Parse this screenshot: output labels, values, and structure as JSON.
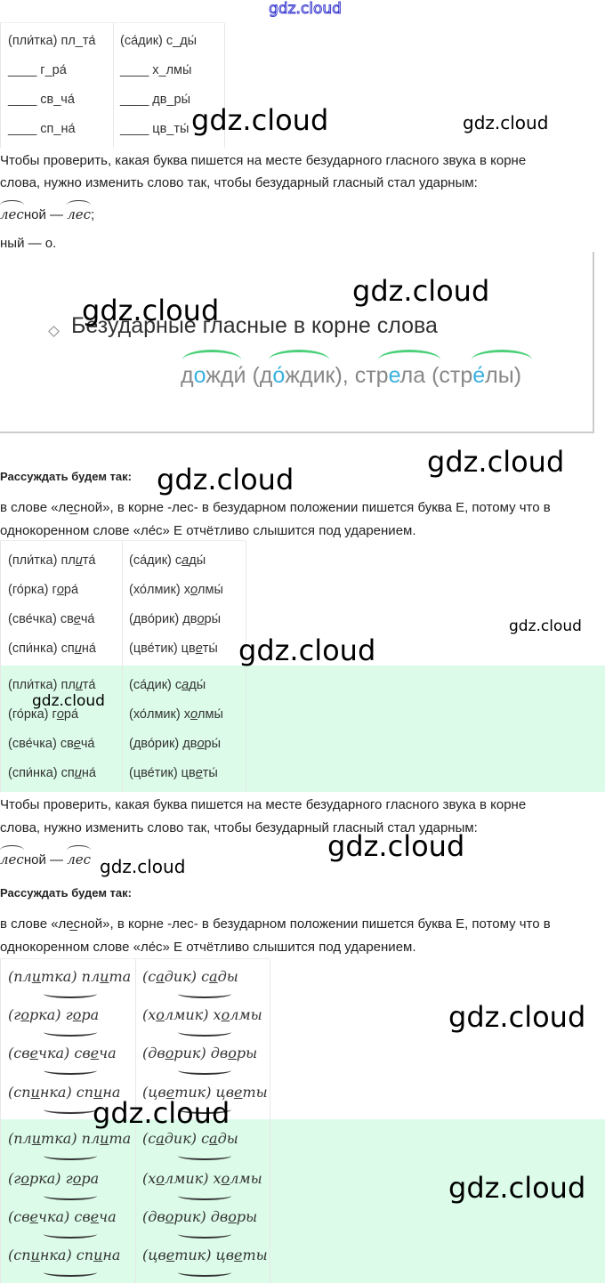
{
  "watermark": "gdz.cloud",
  "task_table": {
    "rows": [
      [
        "(пли́тка) пл_та́",
        "(са́дик) с_ды́"
      ],
      [
        "____ г_ра́",
        "____ х_лмы́"
      ],
      [
        "____ св_ча́",
        "____ дв_ры́"
      ],
      [
        "____ сп_на́",
        "____ цв_ты́"
      ]
    ]
  },
  "rule_text": {
    "line1": "Чтобы проверить, какая буква пишется на месте безударного гласного звука в корне",
    "line2": "слова, нужно изменить слово так, чтобы безударный гласный стал ударным:",
    "example_root": "лес",
    "example_suffix": "ной —",
    "example_root2": "лес",
    "example_end": ";",
    "tail": "ный — о."
  },
  "rule_image": {
    "title": "Безударные гласные в корне слова",
    "example": [
      [
        "д",
        "о",
        "жди́ (д"
      ],
      [
        "о́",
        ""
      ],
      [
        "ждик), стр",
        ""
      ],
      [
        "е",
        ""
      ],
      [
        "ла (стр",
        ""
      ],
      [
        "е́",
        ""
      ],
      [
        "лы)",
        ""
      ]
    ],
    "accent_color": "#3ab0e0",
    "arc_color": "#4cd07a"
  },
  "reasoning": {
    "heading": "Рассуждать будем так:",
    "line1": "в слове «ле̲сной», в корне -лес- в безударном положении пишется буква Е, потому что в",
    "line2": "однокоренном слове «ле́с» Е отчётливо слышится под ударением."
  },
  "answer_table": {
    "rows": [
      [
        [
          "(пли́тка) пл",
          "и",
          "та́"
        ],
        [
          "(са́дик) с",
          "а",
          "ды́"
        ]
      ],
      [
        [
          "(го́рка) г",
          "о",
          "ра́"
        ],
        [
          "(хо́лмик) х",
          "о",
          "лмы́"
        ]
      ],
      [
        [
          "(све́чка) св",
          "е",
          "ча́"
        ],
        [
          "(дво́рик) дв",
          "о",
          "ры́"
        ]
      ],
      [
        [
          "(спи́нка) сп",
          "и",
          "на́"
        ],
        [
          "(цве́тик) цв",
          "е",
          "ты́"
        ]
      ]
    ]
  },
  "serif_table": {
    "rows": [
      [
        [
          "(пл",
          "и",
          "тка) пл",
          "и",
          "та"
        ],
        [
          "(с",
          "а",
          "дик) с",
          "а",
          "ды"
        ]
      ],
      [
        [
          "(г",
          "о",
          "рка) г",
          "о",
          "ра"
        ],
        [
          "(х",
          "о",
          "лмик) х",
          "о",
          "лмы"
        ]
      ],
      [
        [
          "(св",
          "е",
          "чка) св",
          "е",
          "ча"
        ],
        [
          "(дв",
          "о",
          "рик) дв",
          "о",
          "ры"
        ]
      ],
      [
        [
          "(сп",
          "и",
          "нка) сп",
          "и",
          "на"
        ],
        [
          "(цв",
          "е",
          "тик) цв",
          "е",
          "ты"
        ]
      ]
    ]
  },
  "highlight_color": "#dcfbe9"
}
